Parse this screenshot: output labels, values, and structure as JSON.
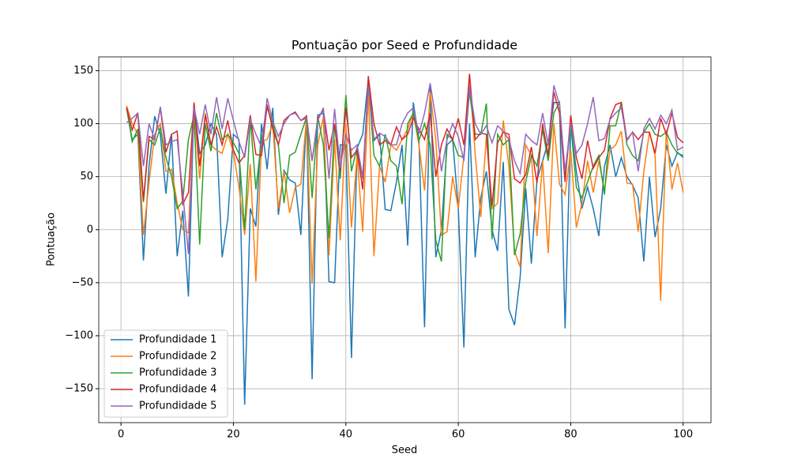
{
  "chart_data": {
    "type": "line",
    "title": "Pontuação por Seed e Profundidade",
    "xlabel": "Seed",
    "ylabel": "Pontuação",
    "x": [
      1,
      2,
      3,
      4,
      5,
      6,
      7,
      8,
      9,
      10,
      11,
      12,
      13,
      14,
      15,
      16,
      17,
      18,
      19,
      20,
      21,
      22,
      23,
      24,
      25,
      26,
      27,
      28,
      29,
      30,
      31,
      32,
      33,
      34,
      35,
      36,
      37,
      38,
      39,
      40,
      41,
      42,
      43,
      44,
      45,
      46,
      47,
      48,
      49,
      50,
      51,
      52,
      53,
      54,
      55,
      56,
      57,
      58,
      59,
      60,
      61,
      62,
      63,
      64,
      65,
      66,
      67,
      68,
      69,
      70,
      71,
      72,
      73,
      74,
      75,
      76,
      77,
      78,
      79,
      80,
      81,
      82,
      83,
      84,
      85,
      86,
      87,
      88,
      89,
      90,
      91,
      92,
      93,
      94,
      95,
      96,
      97,
      98,
      99,
      100
    ],
    "series": [
      {
        "name": "Profundidade 1",
        "color": "#1f77b4",
        "values": [
          115,
          85,
          90,
          -29,
          60,
          107,
          90,
          34,
          90,
          -25,
          18,
          -63,
          118,
          72,
          80,
          100,
          90,
          -26,
          10,
          90,
          85,
          -165,
          20,
          3,
          100,
          57,
          115,
          14,
          56,
          47,
          44,
          -5,
          108,
          -141,
          108,
          110,
          -49,
          -50,
          80,
          80,
          -121,
          77,
          90,
          142,
          84,
          90,
          19,
          18,
          45,
          80,
          -15,
          120,
          85,
          -92,
          138,
          -26,
          0,
          80,
          85,
          20,
          -111,
          100,
          -26,
          30,
          55,
          0,
          -20,
          64,
          -75,
          -90,
          -45,
          39,
          -32,
          47,
          65,
          83,
          120,
          120,
          -93,
          100,
          55,
          20,
          40,
          20,
          -6,
          60,
          80,
          50,
          68,
          50,
          42,
          30,
          -30,
          50,
          -7,
          20,
          80,
          60,
          73,
          68
        ]
      },
      {
        "name": "Profundidade 2",
        "color": "#ff7f0e",
        "values": [
          117,
          100,
          90,
          -5,
          45,
          90,
          100,
          55,
          57,
          25,
          0,
          -3,
          115,
          48,
          110,
          80,
          75,
          72,
          90,
          73,
          40,
          -5,
          62,
          -49,
          83,
          85,
          100,
          20,
          55,
          16,
          40,
          43,
          105,
          -51,
          80,
          106,
          -24,
          85,
          -10,
          100,
          2,
          70,
          -2,
          130,
          -25,
          60,
          45,
          80,
          75,
          85,
          95,
          110,
          80,
          37,
          130,
          85,
          -5,
          -2,
          50,
          20,
          70,
          144,
          72,
          12,
          88,
          20,
          25,
          103,
          60,
          -20,
          -35,
          80,
          70,
          -6,
          65,
          -22,
          100,
          43,
          33,
          75,
          2,
          25,
          65,
          35,
          65,
          37,
          75,
          80,
          93,
          44,
          43,
          -2,
          55,
          92,
          70,
          -67,
          94,
          38,
          63,
          35
        ]
      },
      {
        "name": "Profundidade 3",
        "color": "#2ca02c",
        "values": [
          115,
          83,
          95,
          26,
          85,
          80,
          96,
          68,
          50,
          20,
          27,
          85,
          108,
          -14,
          100,
          74,
          110,
          85,
          90,
          82,
          72,
          0,
          105,
          38,
          85,
          115,
          100,
          80,
          25,
          70,
          73,
          90,
          106,
          30,
          107,
          80,
          -8,
          100,
          48,
          127,
          55,
          78,
          48,
          140,
          70,
          60,
          90,
          65,
          60,
          24,
          100,
          110,
          84,
          100,
          80,
          -10,
          -30,
          90,
          85,
          70,
          68,
          130,
          90,
          90,
          119,
          -9,
          90,
          80,
          85,
          -24,
          -4,
          45,
          70,
          60,
          94,
          65,
          110,
          120,
          50,
          100,
          40,
          30,
          45,
          60,
          70,
          33,
          98,
          98,
          120,
          80,
          70,
          65,
          92,
          100,
          90,
          88,
          92,
          80,
          72,
          70
        ]
      },
      {
        "name": "Profundidade 4",
        "color": "#d62728",
        "values": [
          115,
          94,
          110,
          28,
          88,
          85,
          115,
          73,
          90,
          93,
          24,
          35,
          120,
          60,
          108,
          80,
          97,
          80,
          103,
          75,
          63,
          70,
          108,
          71,
          70,
          118,
          95,
          80,
          103,
          108,
          111,
          103,
          107,
          65,
          105,
          113,
          75,
          100,
          55,
          115,
          68,
          75,
          38,
          145,
          100,
          80,
          84,
          80,
          97,
          85,
          90,
          105,
          95,
          85,
          110,
          50,
          80,
          95,
          85,
          105,
          80,
          147,
          85,
          91,
          90,
          22,
          82,
          92,
          90,
          48,
          44,
          52,
          78,
          44,
          100,
          70,
          130,
          110,
          45,
          108,
          68,
          48,
          84,
          58,
          68,
          75,
          105,
          118,
          120,
          85,
          92,
          85,
          92,
          92,
          72,
          105,
          90,
          110,
          87,
          82
        ]
      },
      {
        "name": "Profundidade 5",
        "color": "#9467bd",
        "values": [
          101,
          105,
          110,
          60,
          100,
          85,
          116,
          80,
          83,
          85,
          35,
          -23,
          115,
          90,
          118,
          90,
          125,
          95,
          124,
          103,
          83,
          68,
          104,
          90,
          78,
          124,
          102,
          88,
          100,
          108,
          110,
          103,
          105,
          65,
          103,
          115,
          48,
          114,
          58,
          90,
          75,
          80,
          50,
          135,
          85,
          91,
          88,
          80,
          80,
          100,
          110,
          115,
          90,
          110,
          138,
          105,
          55,
          85,
          100,
          88,
          65,
          135,
          100,
          90,
          98,
          82,
          98,
          93,
          85,
          65,
          53,
          90,
          84,
          80,
          110,
          80,
          136,
          118,
          55,
          101,
          72,
          80,
          100,
          125,
          84,
          86,
          104,
          110,
          115,
          84,
          92,
          55,
          95,
          105,
          95,
          108,
          100,
          113,
          75,
          78
        ]
      }
    ],
    "xlim": [
      -3.95,
      104.95
    ],
    "ylim": [
      -182,
      163
    ],
    "xticks": [
      0,
      20,
      40,
      60,
      80,
      100
    ],
    "yticks": [
      {
        "value": -150,
        "label": "−150"
      },
      {
        "value": -100,
        "label": "−100"
      },
      {
        "value": -50,
        "label": "−50"
      },
      0,
      50,
      100,
      150
    ],
    "grid": true,
    "legend": "lower left"
  }
}
